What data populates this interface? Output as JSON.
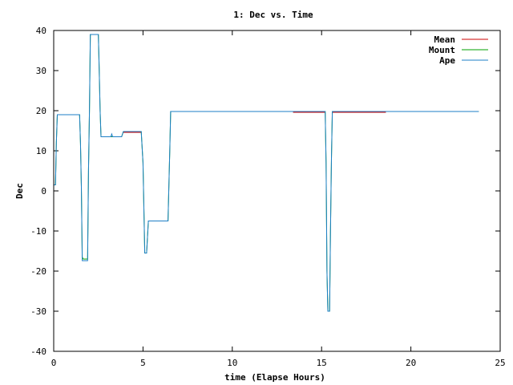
{
  "chart_data": {
    "type": "line",
    "title": "1: Dec vs. Time",
    "xlabel": "time (Elapse Hours)",
    "ylabel": "Dec",
    "xlim": [
      0,
      25
    ],
    "ylim": [
      -40,
      40
    ],
    "xticks": [
      0,
      5,
      10,
      15,
      20,
      25
    ],
    "yticks": [
      -40,
      -30,
      -20,
      -10,
      0,
      10,
      20,
      30,
      40
    ],
    "grid": false,
    "legend_position": "top-right",
    "series": [
      {
        "name": "Mean",
        "color": "#cc0000",
        "x": [
          1.6,
          1.9,
          null,
          3.9,
          4.9,
          null,
          13.4,
          15.2,
          null,
          15.6,
          18.6
        ],
        "y": [
          -17.4,
          -17.4,
          null,
          14.6,
          14.6,
          null,
          19.6,
          19.6,
          null,
          19.6,
          19.6
        ]
      },
      {
        "name": "Mount",
        "color": "#00a000",
        "x": [
          0.0,
          0.1,
          0.15,
          0.2,
          1.45,
          1.5,
          1.55,
          1.6,
          1.65,
          1.9,
          1.95,
          2.0,
          2.05,
          2.1,
          2.5,
          2.55,
          2.6,
          2.65,
          3.2,
          3.3,
          3.8,
          3.9,
          4.9,
          5.0,
          5.1,
          5.2,
          5.3,
          6.4,
          6.5,
          6.55,
          15.1,
          15.2,
          15.25,
          15.3,
          15.35,
          15.45,
          15.5,
          15.55,
          15.6,
          23.8
        ],
        "y": [
          1.5,
          1.5,
          12,
          19,
          19,
          12,
          1,
          -16.5,
          -17,
          -17,
          5,
          20,
          39,
          39,
          39,
          30,
          20,
          13.5,
          13.5,
          13.5,
          13.5,
          14.8,
          14.8,
          7,
          -15.5,
          -15.5,
          -7.5,
          -7.5,
          10,
          19.8,
          19.8,
          19.8,
          7,
          -20,
          -30,
          -30,
          -10,
          8,
          19.8,
          19.8
        ]
      },
      {
        "name": "Ape",
        "color": "#1e7fc7",
        "x": [
          0.0,
          0.1,
          0.15,
          0.2,
          1.45,
          1.5,
          1.55,
          1.6,
          1.65,
          1.9,
          1.95,
          2.0,
          2.05,
          2.1,
          2.5,
          2.55,
          2.6,
          2.65,
          3.2,
          3.25,
          3.3,
          3.8,
          3.9,
          4.9,
          5.0,
          5.1,
          5.2,
          5.3,
          6.4,
          6.5,
          6.55,
          15.1,
          15.2,
          15.25,
          15.3,
          15.35,
          15.45,
          15.5,
          15.55,
          15.6,
          23.8
        ],
        "y": [
          1.5,
          1.5,
          12,
          19,
          19,
          12,
          1,
          -17.4,
          -17.4,
          -17.4,
          5,
          20,
          39,
          39,
          39,
          30,
          20,
          13.5,
          13.5,
          14.2,
          13.5,
          13.5,
          14.8,
          14.8,
          7,
          -15.5,
          -15.5,
          -7.5,
          -7.5,
          10,
          19.8,
          19.8,
          19.8,
          7,
          -20,
          -30,
          -30,
          -10,
          8,
          19.8,
          19.8
        ]
      }
    ]
  }
}
